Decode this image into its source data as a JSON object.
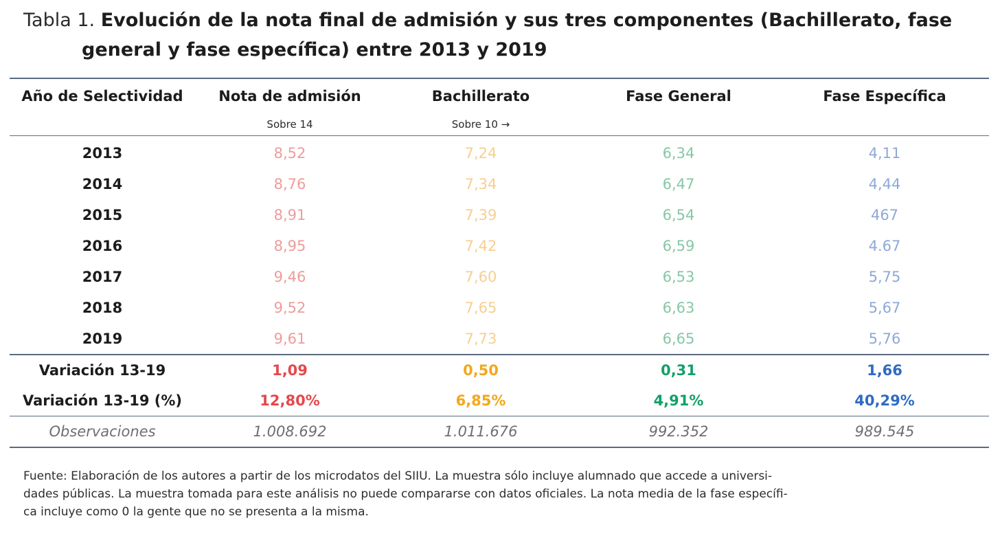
{
  "title": {
    "prefix": "Tabla 1.",
    "line1": "Evolución de la nota final de admisión y sus tres componentes (Bachillerato, fase",
    "line2": "general y fase específica) entre 2013 y 2019"
  },
  "table": {
    "headers": [
      "Año de Selectividad",
      "Nota de admisión",
      "Bachillerato",
      "Fase General",
      "Fase Específica"
    ],
    "units": [
      "",
      "Sobre 14",
      "Sobre 10 →",
      "",
      ""
    ],
    "rows": [
      {
        "year": "2013",
        "values": [
          "8,52",
          "7,24",
          "6,34",
          "4,11"
        ]
      },
      {
        "year": "2014",
        "values": [
          "8,76",
          "7,34",
          "6,47",
          "4,44"
        ]
      },
      {
        "year": "2015",
        "values": [
          "8,91",
          "7,39",
          "6,54",
          "467"
        ]
      },
      {
        "year": "2016",
        "values": [
          "8,95",
          "7,42",
          "6,59",
          "4.67"
        ]
      },
      {
        "year": "2017",
        "values": [
          "9,46",
          "7,60",
          "6,53",
          "5,75"
        ]
      },
      {
        "year": "2018",
        "values": [
          "9,52",
          "7,65",
          "6,63",
          "5,67"
        ]
      },
      {
        "year": "2019",
        "values": [
          "9,61",
          "7,73",
          "6,65",
          "5,76"
        ]
      }
    ],
    "variation": {
      "label": "Variación 13-19",
      "values": [
        "1,09",
        "0,50",
        "0,31",
        "1,66"
      ]
    },
    "variation_pct": {
      "label": "Variación 13-19 (%)",
      "values": [
        "12,80%",
        "6,85%",
        "4,91%",
        "40,29%"
      ]
    },
    "observations": {
      "label": "Observaciones",
      "values": [
        "1.008.692",
        "1.011.676",
        "992.352",
        "989.545"
      ]
    }
  },
  "colors": {
    "admision_light": "#ee9c9a",
    "bachillerato_light": "#f7cf8f",
    "general_light": "#86c7a7",
    "especifica_light": "#8ea8d8",
    "admision_strong": "#e5484d",
    "bachillerato_strong": "#f2a81d",
    "general_strong": "#13a06a",
    "especifica_strong": "#2f6cc2"
  },
  "footnote": {
    "line1": "Fuente: Elaboración de los autores a partir de los microdatos del SIIU. La muestra sólo incluye alumnado que accede a universi-",
    "line2": "dades públicas. La muestra tomada para este análisis no puede compararse con datos oficiales.  La nota media de la fase específi-",
    "line3": "ca incluye como 0 la gente que no se presenta a la misma."
  }
}
